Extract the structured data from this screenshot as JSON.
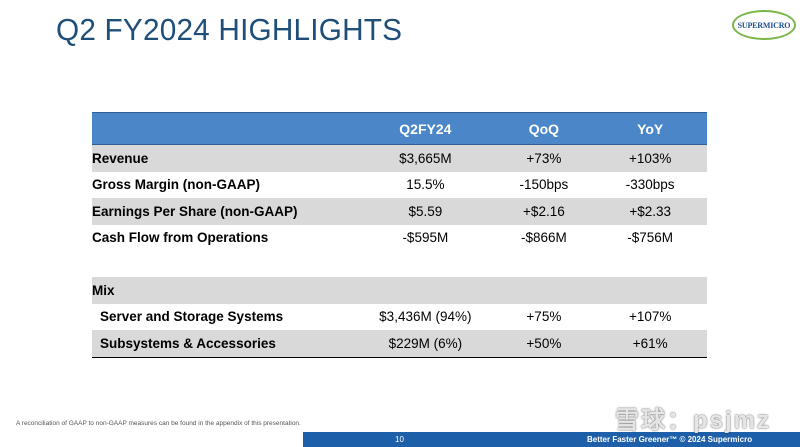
{
  "slide": {
    "title": "Q2 FY2024 HIGHLIGHTS",
    "logo_text": "SUPERMICRO",
    "footnote": "A reconciliation of GAAP to non-GAAP measures can be found in the appendix of this presentation.",
    "page_number": "10",
    "tagline": "Better Faster Greener™ © 2024 Supermicro",
    "watermark": "雪球：psjmz"
  },
  "table": {
    "headers": [
      "",
      "Q2FY24",
      "QoQ",
      "YoY"
    ],
    "rows": [
      {
        "label": "Revenue",
        "q2fy24": "$3,665M",
        "qoq": "+73%",
        "yoy": "+103%"
      },
      {
        "label": "Gross Margin (non-GAAP)",
        "q2fy24": "15.5%",
        "qoq": "-150bps",
        "yoy": "-330bps"
      },
      {
        "label": "Earnings Per Share (non-GAAP)",
        "q2fy24": "$5.59",
        "qoq": "+$2.16",
        "yoy": "+$2.33"
      },
      {
        "label": "Cash Flow from Operations",
        "q2fy24": "-$595M",
        "qoq": "-$866M",
        "yoy": "-$756M"
      }
    ],
    "mix_label": "Mix",
    "mix_rows": [
      {
        "label": "Server and Storage Systems",
        "q2fy24": "$3,436M (94%)",
        "qoq": "+75%",
        "yoy": "+107%"
      },
      {
        "label": "Subsystems & Accessories",
        "q2fy24": "$229M (6%)",
        "qoq": "+50%",
        "yoy": "+61%"
      }
    ]
  }
}
